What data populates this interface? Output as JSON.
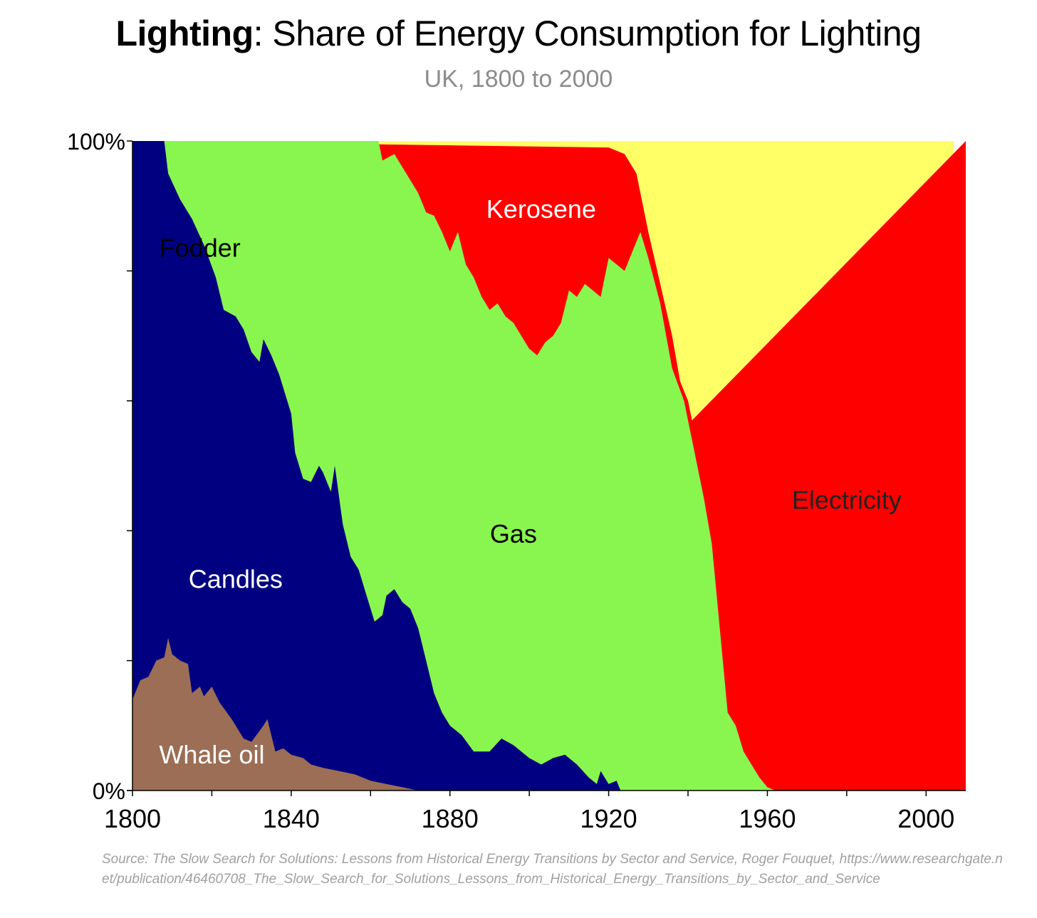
{
  "title": {
    "bold": "Lighting",
    "rest": ": Share of Energy Consumption for Lighting"
  },
  "subtitle": "UK, 1800 to 2000",
  "source": "Source: The Slow Search for Solutions: Lessons from Historical Energy Transitions by Sector and Service, Roger Fouquet, https://www.researchgate.net/publication/46460708_The_Slow_Search_for_Solutions_Lessons_from_Historical_Energy_Transitions_by_Sector_and_Service",
  "chart_data": {
    "type": "area",
    "stacked": "percent",
    "xlim": [
      1800,
      2010
    ],
    "ylim": [
      0,
      100
    ],
    "x_ticks": [
      1800,
      1820,
      1840,
      1860,
      1880,
      1900,
      1920,
      1940,
      1960,
      1980,
      2000
    ],
    "x_tick_labels": [
      "1800",
      "1840",
      "1880",
      "1920",
      "1960",
      "2000"
    ],
    "y_ticks": [
      0,
      20,
      40,
      60,
      80,
      100
    ],
    "y_tick_labels": [
      "0%",
      "100%"
    ],
    "grid": false,
    "legend": "inline labels",
    "series": [
      {
        "name": "Whale oil",
        "color": "#9c6e55",
        "label_color": "#ffffff",
        "label_at": [
          1820,
          5.5
        ],
        "boundary": [
          [
            1800,
            14
          ],
          [
            1802,
            17
          ],
          [
            1804,
            17.5
          ],
          [
            1806,
            20
          ],
          [
            1808,
            20.5
          ],
          [
            1809,
            23.5
          ],
          [
            1810,
            21
          ],
          [
            1812,
            20
          ],
          [
            1814,
            19.5
          ],
          [
            1815,
            15
          ],
          [
            1817,
            16
          ],
          [
            1818,
            14.5
          ],
          [
            1820,
            16
          ],
          [
            1822,
            13.5
          ],
          [
            1825,
            11
          ],
          [
            1828,
            8
          ],
          [
            1830,
            7.5
          ],
          [
            1833,
            10
          ],
          [
            1834,
            11
          ],
          [
            1836,
            6
          ],
          [
            1838,
            6.5
          ],
          [
            1840,
            5.5
          ],
          [
            1843,
            5
          ],
          [
            1845,
            4
          ],
          [
            1848,
            3.5
          ],
          [
            1852,
            3
          ],
          [
            1856,
            2.5
          ],
          [
            1860,
            1.5
          ],
          [
            1864,
            1
          ],
          [
            1868,
            0.5
          ],
          [
            1872,
            0
          ],
          [
            2010,
            0
          ]
        ]
      },
      {
        "name": "Candles",
        "color": "#000080",
        "label_color": "#ffffff",
        "label_at": [
          1826,
          32.5
        ],
        "boundary": [
          [
            1800,
            100
          ],
          [
            1808,
            100
          ],
          [
            1809,
            95
          ],
          [
            1812,
            91
          ],
          [
            1815,
            88
          ],
          [
            1818,
            84
          ],
          [
            1821,
            79
          ],
          [
            1823,
            74
          ],
          [
            1826,
            73
          ],
          [
            1828,
            71
          ],
          [
            1830,
            67.5
          ],
          [
            1832,
            66
          ],
          [
            1833,
            69.5
          ],
          [
            1835,
            67
          ],
          [
            1837,
            64
          ],
          [
            1840,
            58
          ],
          [
            1841,
            52
          ],
          [
            1843,
            48
          ],
          [
            1845,
            47.5
          ],
          [
            1847,
            50
          ],
          [
            1848,
            49
          ],
          [
            1850,
            46
          ],
          [
            1851,
            50
          ],
          [
            1853,
            41
          ],
          [
            1855,
            36
          ],
          [
            1857,
            34
          ],
          [
            1859,
            30
          ],
          [
            1861,
            26
          ],
          [
            1863,
            27
          ],
          [
            1864,
            30
          ],
          [
            1866,
            31
          ],
          [
            1868,
            29
          ],
          [
            1870,
            28
          ],
          [
            1872,
            25
          ],
          [
            1874,
            20
          ],
          [
            1876,
            15
          ],
          [
            1878,
            12
          ],
          [
            1880,
            10
          ],
          [
            1883,
            8.5
          ],
          [
            1886,
            6
          ],
          [
            1890,
            6
          ],
          [
            1893,
            8
          ],
          [
            1896,
            7
          ],
          [
            1900,
            5
          ],
          [
            1903,
            4
          ],
          [
            1906,
            5
          ],
          [
            1909,
            5.5
          ],
          [
            1912,
            4
          ],
          [
            1915,
            2
          ],
          [
            1917,
            1
          ],
          [
            1918,
            3
          ],
          [
            1920,
            1
          ],
          [
            1922,
            1.5
          ],
          [
            1923,
            0
          ],
          [
            2010,
            0
          ]
        ]
      },
      {
        "name": "Fodder",
        "color": "#000080",
        "label_color": "#000000",
        "label_at": [
          1817,
          83.5
        ],
        "boundary": []
      },
      {
        "name": "Gas",
        "color": "#88f64e",
        "label_color": "#000000",
        "label_at": [
          1896,
          39.5
        ],
        "boundary": [
          [
            1800,
            100
          ],
          [
            1862,
            100
          ],
          [
            1863,
            97
          ],
          [
            1866,
            98
          ],
          [
            1869,
            95
          ],
          [
            1872,
            92
          ],
          [
            1874,
            89
          ],
          [
            1876,
            88.5
          ],
          [
            1878,
            86
          ],
          [
            1880,
            83
          ],
          [
            1882,
            86
          ],
          [
            1884,
            81
          ],
          [
            1886,
            79
          ],
          [
            1888,
            76
          ],
          [
            1890,
            74
          ],
          [
            1892,
            75
          ],
          [
            1894,
            73
          ],
          [
            1896,
            72
          ],
          [
            1898,
            70
          ],
          [
            1900,
            68
          ],
          [
            1902,
            67
          ],
          [
            1904,
            69
          ],
          [
            1906,
            70
          ],
          [
            1908,
            72
          ],
          [
            1910,
            77
          ],
          [
            1912,
            76
          ],
          [
            1914,
            78
          ],
          [
            1916,
            77
          ],
          [
            1918,
            76
          ],
          [
            1920,
            82
          ],
          [
            1922,
            81
          ],
          [
            1924,
            80
          ],
          [
            1926,
            83
          ],
          [
            1928,
            86
          ],
          [
            1930,
            82
          ],
          [
            1933,
            75
          ],
          [
            1936,
            65
          ],
          [
            1939,
            60
          ],
          [
            1941,
            54
          ],
          [
            1944,
            45
          ],
          [
            1946,
            38
          ],
          [
            1948,
            25
          ],
          [
            1950,
            12
          ],
          [
            1952,
            10
          ],
          [
            1954,
            6
          ],
          [
            1956,
            4
          ],
          [
            1958,
            2
          ],
          [
            1960,
            0.5
          ],
          [
            1962,
            0
          ],
          [
            2010,
            0
          ]
        ]
      },
      {
        "name": "Kerosene",
        "color": "#ff0000",
        "label_color": "#ffffff",
        "label_at": [
          1903,
          89.5
        ],
        "boundary": [
          [
            1800,
            100
          ],
          [
            1920,
            99
          ],
          [
            1924,
            98
          ],
          [
            1927,
            95
          ],
          [
            1930,
            86
          ],
          [
            1933,
            78
          ],
          [
            1936,
            70
          ],
          [
            1938,
            63
          ],
          [
            1940,
            60
          ],
          [
            1941,
            57
          ],
          [
            2010,
            100
          ]
        ]
      },
      {
        "name": "Electricity",
        "color": "#ffff66",
        "label_color": "#222222",
        "label_at": [
          1980,
          44.7
        ],
        "boundary": [
          [
            1800,
            100
          ],
          [
            2007,
            100
          ]
        ]
      }
    ]
  }
}
